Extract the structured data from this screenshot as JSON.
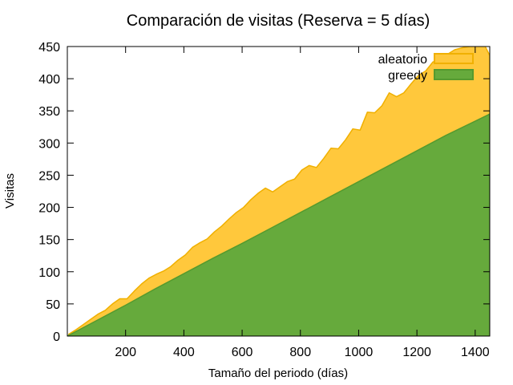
{
  "chart_data": {
    "type": "area",
    "title": "Comparación de visitas (Reserva = 5 días)",
    "xlabel": "Tamaño del periodo (días)",
    "ylabel": "Visitas",
    "xlim": [
      0,
      1450
    ],
    "ylim": [
      0,
      450
    ],
    "x_ticks": [
      200,
      400,
      600,
      800,
      1000,
      1200,
      1400
    ],
    "y_ticks": [
      0,
      50,
      100,
      150,
      200,
      250,
      300,
      350,
      400,
      450
    ],
    "grid": false,
    "legend": "top-right",
    "series": [
      {
        "name": "aleatorio",
        "color": "#ffc83c",
        "edge_color": "#f0b000",
        "x": [
          5,
          30,
          55,
          80,
          105,
          130,
          155,
          180,
          205,
          230,
          255,
          280,
          305,
          330,
          355,
          380,
          405,
          430,
          455,
          480,
          505,
          530,
          555,
          580,
          605,
          630,
          655,
          680,
          705,
          730,
          755,
          780,
          805,
          830,
          855,
          880,
          905,
          930,
          955,
          980,
          1005,
          1030,
          1055,
          1080,
          1105,
          1130,
          1155,
          1180,
          1205,
          1230,
          1255,
          1280,
          1305,
          1330,
          1355,
          1380,
          1405,
          1430,
          1450
        ],
        "values": [
          3,
          10,
          18,
          26,
          34,
          40,
          50,
          58,
          58,
          70,
          81,
          90,
          96,
          101,
          108,
          118,
          126,
          138,
          145,
          151,
          162,
          171,
          182,
          192,
          200,
          212,
          222,
          230,
          224,
          232,
          240,
          244,
          258,
          265,
          262,
          276,
          292,
          291,
          305,
          322,
          320,
          348,
          347,
          358,
          378,
          372,
          378,
          392,
          405,
          412,
          426,
          430,
          438,
          445,
          448,
          450,
          452,
          454,
          436
        ]
      },
      {
        "name": "greedy",
        "color": "#66aa3c",
        "edge_color": "#559a2e",
        "x": [
          0,
          100,
          200,
          300,
          400,
          500,
          600,
          700,
          800,
          900,
          1000,
          1100,
          1200,
          1300,
          1400,
          1450
        ],
        "values": [
          0,
          24,
          48,
          73,
          97,
          121,
          144,
          168,
          192,
          216,
          240,
          264,
          288,
          312,
          334,
          345
        ]
      }
    ]
  }
}
